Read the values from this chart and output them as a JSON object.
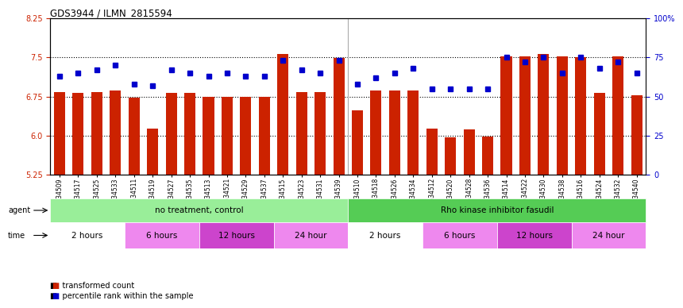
{
  "title": "GDS3944 / ILMN_2815594",
  "samples": [
    "GSM634509",
    "GSM634517",
    "GSM634525",
    "GSM634533",
    "GSM634511",
    "GSM634519",
    "GSM634527",
    "GSM634535",
    "GSM634513",
    "GSM634521",
    "GSM634529",
    "GSM634537",
    "GSM634515",
    "GSM634523",
    "GSM634531",
    "GSM634539",
    "GSM634510",
    "GSM634518",
    "GSM634526",
    "GSM634534",
    "GSM634512",
    "GSM634520",
    "GSM634528",
    "GSM634536",
    "GSM634514",
    "GSM634522",
    "GSM634530",
    "GSM634538",
    "GSM634516",
    "GSM634524",
    "GSM634532",
    "GSM634540"
  ],
  "bar_values": [
    6.84,
    6.82,
    6.83,
    6.87,
    6.73,
    6.13,
    6.82,
    6.82,
    6.75,
    6.75,
    6.75,
    6.75,
    7.57,
    6.83,
    6.83,
    7.49,
    6.48,
    6.87,
    6.87,
    6.87,
    6.14,
    5.96,
    6.12,
    5.98,
    7.52,
    7.52,
    7.57,
    7.52,
    7.5,
    6.82,
    7.52,
    6.77
  ],
  "percentile_values": [
    63,
    65,
    67,
    70,
    58,
    57,
    67,
    65,
    63,
    65,
    63,
    63,
    73,
    67,
    65,
    73,
    58,
    62,
    65,
    68,
    55,
    55,
    55,
    55,
    75,
    72,
    75,
    65,
    75,
    68,
    72,
    65
  ],
  "ylim": [
    5.25,
    8.25
  ],
  "y2lim": [
    0,
    100
  ],
  "yticks": [
    5.25,
    6.0,
    6.75,
    7.5,
    8.25
  ],
  "y2ticks": [
    0,
    25,
    50,
    75,
    100
  ],
  "bar_color": "#cc2200",
  "square_color": "#0000cc",
  "plot_bg": "#ffffff",
  "agent_groups": [
    {
      "label": "no treatment, control",
      "start": 0,
      "end": 16,
      "color": "#99ee99"
    },
    {
      "label": "Rho kinase inhibitor fasudil",
      "start": 16,
      "end": 32,
      "color": "#55cc55"
    }
  ],
  "time_groups": [
    {
      "label": "2 hours",
      "start": 0,
      "end": 4,
      "color": "#ffffff"
    },
    {
      "label": "6 hours",
      "start": 4,
      "end": 8,
      "color": "#ee88ee"
    },
    {
      "label": "12 hours",
      "start": 8,
      "end": 12,
      "color": "#cc44cc"
    },
    {
      "label": "24 hour",
      "start": 12,
      "end": 16,
      "color": "#ee88ee"
    },
    {
      "label": "2 hours",
      "start": 16,
      "end": 20,
      "color": "#ffffff"
    },
    {
      "label": "6 hours",
      "start": 20,
      "end": 24,
      "color": "#ee88ee"
    },
    {
      "label": "12 hours",
      "start": 24,
      "end": 28,
      "color": "#cc44cc"
    },
    {
      "label": "24 hour",
      "start": 28,
      "end": 32,
      "color": "#ee88ee"
    }
  ]
}
